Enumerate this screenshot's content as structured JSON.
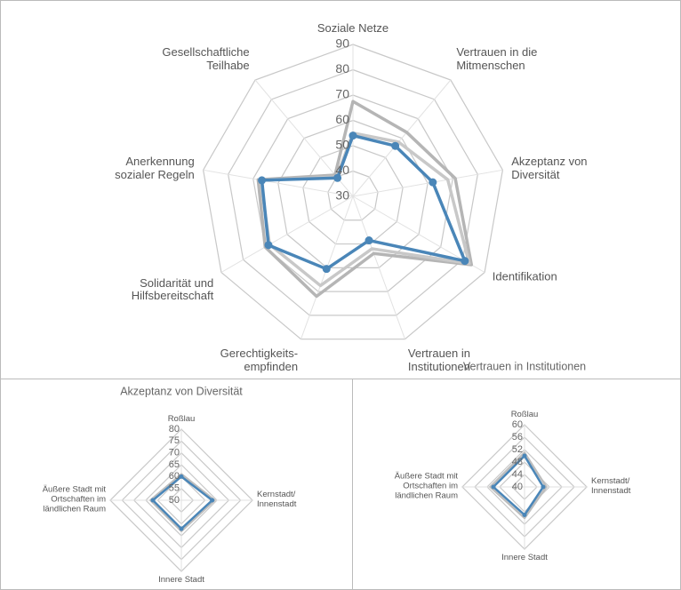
{
  "chart_data": [
    {
      "type": "radar",
      "categories": [
        "Soziale Netze",
        "Vertrauen in die\nMitmenschen",
        "Akzeptanz von\nDiversität",
        "Identifikation",
        "Vertrauen in\nInstitutionen",
        "Gerechtigkeits-\nempfinden",
        "Solidarität und\nHilfsbereitschaft",
        "Anerkennung\nsozialer Regeln",
        "Gesellschaftliche\nTeilhabe"
      ],
      "ylim": [
        30,
        90
      ],
      "yticks": [
        30,
        40,
        50,
        60,
        70,
        80,
        90
      ],
      "series": [
        {
          "color": "#b5b5b5",
          "values": [
            67.5,
            63,
            71,
            84,
            54,
            72,
            70,
            68,
            41
          ]
        },
        {
          "color": "#c8c8c8",
          "values": [
            55,
            58,
            68,
            83,
            52,
            67.5,
            68,
            67,
            40
          ]
        },
        {
          "color": "#4a86b8",
          "values": [
            54,
            56,
            62,
            81,
            48.5,
            60.5,
            68.5,
            66.5,
            39.5
          ]
        }
      ]
    },
    {
      "type": "radar",
      "title": "Akzeptanz von Diversität",
      "categories": [
        "Roßlau",
        "Kernstadt/\nInnenstadt",
        "Innere Stadt",
        "Äußere Stadt mit\nOrtschaften im\nländlichen Raum"
      ],
      "ylim": [
        50,
        80
      ],
      "yticks": [
        50,
        55,
        60,
        65,
        70,
        75,
        80
      ],
      "series": [
        {
          "color": "#bdbdbd",
          "values": [
            61,
            64,
            63,
            63
          ]
        },
        {
          "color": "#4a86b8",
          "values": [
            60,
            63,
            62,
            62
          ]
        }
      ]
    },
    {
      "type": "radar",
      "title": "Vertrauen in Institutionen",
      "categories": [
        "Roßlau",
        "Kernstadt/\nInnenstadt",
        "Innere Stadt",
        "Äußere Stadt mit\nOrtschaften im\nländlichen Raum"
      ],
      "ylim": [
        40,
        60
      ],
      "yticks": [
        40,
        44,
        48,
        52,
        56,
        60
      ],
      "series": [
        {
          "color": "#bdbdbd",
          "values": [
            51,
            47,
            50,
            51
          ]
        },
        {
          "color": "#4a86b8",
          "values": [
            50,
            46,
            49,
            50
          ]
        }
      ]
    }
  ]
}
